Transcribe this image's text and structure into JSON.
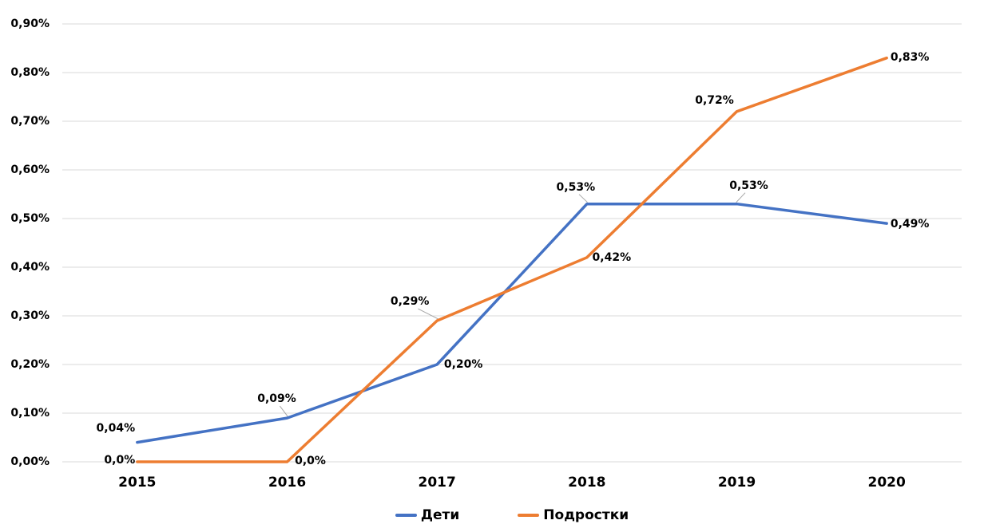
{
  "chart_data": {
    "type": "line",
    "categories": [
      "2015",
      "2016",
      "2017",
      "2018",
      "2019",
      "2020"
    ],
    "series": [
      {
        "name": "Дети",
        "color": "#4472C4",
        "values": [
          0.04,
          0.09,
          0.2,
          0.53,
          0.53,
          0.49
        ],
        "labels": [
          "0,04%",
          "0,09%",
          "0,20%",
          "0,53%",
          "0,53%",
          "0,49%"
        ]
      },
      {
        "name": "Подростки",
        "color": "#ED7D31",
        "values": [
          0.0,
          0.0,
          0.29,
          0.42,
          0.72,
          0.83
        ],
        "labels": [
          "0,0%",
          "0,0%",
          "0,29%",
          "0,42%",
          "0,72%",
          "0,83%"
        ]
      }
    ],
    "ylim": [
      0,
      0.9
    ],
    "y_ticks": {
      "values": [
        0,
        0.1,
        0.2,
        0.3,
        0.4,
        0.5,
        0.6,
        0.7,
        0.8,
        0.9
      ],
      "labels": [
        "0,00%",
        "0,10%",
        "0,20%",
        "0,30%",
        "0,40%",
        "0,50%",
        "0,60%",
        "0,70%",
        "0,80%",
        "0,90%"
      ]
    },
    "grid": "horizontal",
    "legend_position": "bottom-center",
    "data_labels_shown": true
  },
  "colors": {
    "series_blue": "#4472C4",
    "series_orange": "#ED7D31",
    "gridline": "#D9D9D9",
    "leader_line": "#A6A6A6",
    "text": "#000000",
    "background": "#FFFFFF"
  }
}
